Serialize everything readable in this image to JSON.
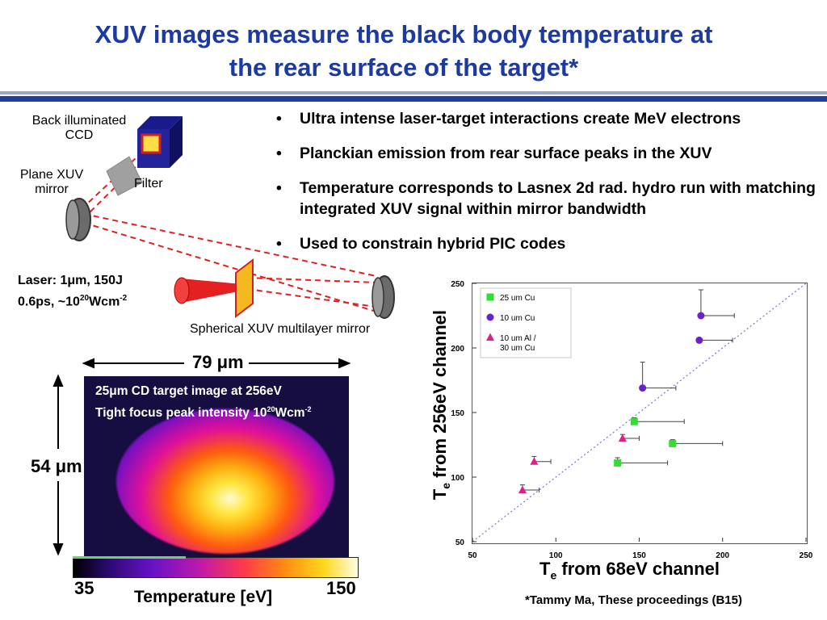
{
  "slide": {
    "title_line1": "XUV images measure the black body temperature at",
    "title_line2": "the rear surface of the target*",
    "bullets": [
      "Ultra intense laser-target interactions create MeV electrons",
      "Planckian emission from rear surface peaks in the XUV",
      "Temperature corresponds to Lasnex 2d rad. hydro run with matching integrated XUV signal within mirror bandwidth",
      "Used to constrain hybrid PIC codes"
    ],
    "footnote": "*Tammy Ma, These proceedings (B15)"
  },
  "diagram": {
    "ccd_label_1": "Back illuminated",
    "ccd_label_2": "CCD",
    "mirror_label_1": "Plane XUV",
    "mirror_label_2": "mirror",
    "filter_label": "Filter",
    "laser_line1": "Laser: 1μm, 150J",
    "laser_line2_a": "0.6ps, ~10",
    "laser_line2_sup": "20",
    "laser_line2_b": "Wcm",
    "laser_line2_sup2": "-2",
    "spherical_label": "Spherical XUV multilayer mirror"
  },
  "image_panel": {
    "width_label": "79 μm",
    "height_label": "54 μm",
    "caption_line1": "25μm CD target image at 256eV",
    "caption_line2_a": "Tight focus peak intensity 10",
    "caption_line2_sup": "20",
    "caption_line2_b": "Wcm",
    "caption_line2_sup2": "-2",
    "colorbar_min": "35",
    "colorbar_max": "150",
    "colorbar_label": "Temperature [eV]"
  },
  "chart_data": {
    "type": "scatter",
    "xlabel_main": "T",
    "xlabel_sub": "e",
    "xlabel_rest": " from 68eV channel",
    "ylabel_main": "T",
    "ylabel_sub": "e",
    "ylabel_rest": " from 256eV channel",
    "xlim": [
      50,
      250
    ],
    "ylim": [
      50,
      250
    ],
    "xticks": [
      "50",
      "100",
      "150",
      "200",
      "250"
    ],
    "yticks": [
      "50",
      "100",
      "150",
      "200",
      "250"
    ],
    "diagonal": true,
    "legend_position": "top-left",
    "series": [
      {
        "name": "25 um Cu",
        "marker": "square",
        "color": "#33dd33",
        "points": [
          {
            "x": 147,
            "y": 143,
            "xerr_plus": 30,
            "yerr_plus": 3
          },
          {
            "x": 170,
            "y": 126,
            "xerr_plus": 30,
            "yerr_plus": 3
          },
          {
            "x": 137,
            "y": 111,
            "xerr_plus": 30,
            "yerr_plus": 4
          }
        ]
      },
      {
        "name": "10 um Cu",
        "marker": "circle",
        "color": "#6a1fd0",
        "points": [
          {
            "x": 187,
            "y": 225,
            "xerr_plus": 20,
            "yerr_plus": 20
          },
          {
            "x": 186,
            "y": 206,
            "xerr_plus": 20,
            "yerr_plus": 0
          },
          {
            "x": 152,
            "y": 169,
            "xerr_plus": 20,
            "yerr_plus": 20
          }
        ]
      },
      {
        "name": "10 um Al /",
        "name_line2": "30 um Cu",
        "marker": "triangle",
        "color": "#e0208a",
        "points": [
          {
            "x": 87,
            "y": 112,
            "xerr_plus": 10,
            "yerr_plus": 4
          },
          {
            "x": 140,
            "y": 130,
            "xerr_plus": 10,
            "yerr_plus": 3
          },
          {
            "x": 80,
            "y": 90,
            "xerr_plus": 10,
            "yerr_plus": 4
          }
        ]
      }
    ]
  }
}
